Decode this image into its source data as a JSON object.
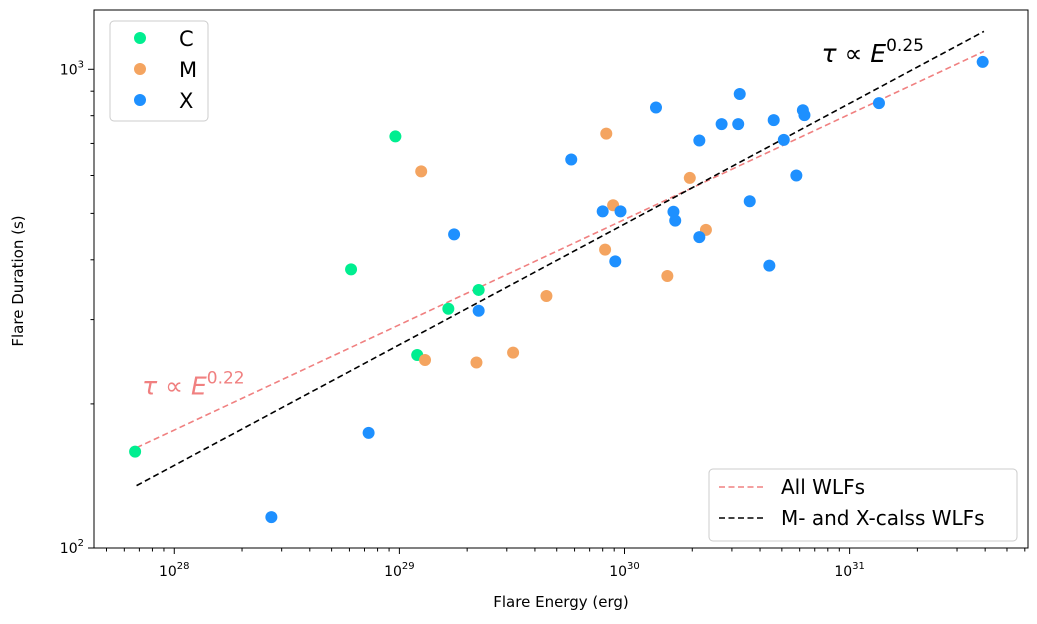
{
  "chart_data": {
    "type": "scatter",
    "xscale": "log",
    "yscale": "log",
    "xlabel": "Flare Energy (erg)",
    "ylabel": "Flare Duration (s)",
    "xlim": [
      4.4e+27,
      6.2e+31
    ],
    "ylim": [
      100,
      1330
    ],
    "x_ticks": [
      {
        "value": 1e+28,
        "base": "10",
        "exp": "28"
      },
      {
        "value": 1e+29,
        "base": "10",
        "exp": "29"
      },
      {
        "value": 1e+30,
        "base": "10",
        "exp": "30"
      },
      {
        "value": 1e+31,
        "base": "10",
        "exp": "31"
      }
    ],
    "y_ticks": [
      {
        "value": 100,
        "base": "10",
        "exp": "2"
      },
      {
        "value": 1000,
        "base": "10",
        "exp": "3"
      }
    ],
    "series": [
      {
        "name": "C",
        "color": "#00ee90",
        "points": [
          [
            6.7e+27,
            159
          ],
          [
            6.1e+28,
            382
          ],
          [
            9.6e+28,
            724
          ],
          [
            1.2e+29,
            253
          ],
          [
            1.65e+29,
            316
          ],
          [
            2.25e+29,
            346
          ]
        ]
      },
      {
        "name": "M",
        "color": "#f4a460",
        "points": [
          [
            1.25e+29,
            612
          ],
          [
            1.3e+29,
            247
          ],
          [
            2.2e+29,
            244
          ],
          [
            3.2e+29,
            256
          ],
          [
            4.5e+29,
            336
          ],
          [
            8.2e+29,
            420
          ],
          [
            8.3e+29,
            734
          ],
          [
            8.9e+29,
            520
          ],
          [
            1.55e+30,
            370
          ],
          [
            1.95e+30,
            593
          ],
          [
            2.3e+30,
            462
          ]
        ]
      },
      {
        "name": "X",
        "color": "#1e90ff",
        "points": [
          [
            2.7e+28,
            116
          ],
          [
            7.3e+28,
            174
          ],
          [
            1.75e+29,
            452
          ],
          [
            2.25e+29,
            313
          ],
          [
            5.8e+29,
            648
          ],
          [
            8e+29,
            505
          ],
          [
            9.1e+29,
            397
          ],
          [
            9.6e+29,
            505
          ],
          [
            1.38e+30,
            832
          ],
          [
            1.65e+30,
            504
          ],
          [
            1.68e+30,
            483
          ],
          [
            2.15e+30,
            710
          ],
          [
            2.15e+30,
            446
          ],
          [
            2.7e+30,
            768
          ],
          [
            3.2e+30,
            768
          ],
          [
            3.25e+30,
            888
          ],
          [
            3.6e+30,
            530
          ],
          [
            4.4e+30,
            389
          ],
          [
            4.6e+30,
            783
          ],
          [
            5.1e+30,
            712
          ],
          [
            5.8e+30,
            600
          ],
          [
            6.2e+30,
            821
          ],
          [
            6.3e+30,
            802
          ],
          [
            1.35e+31,
            850
          ],
          [
            3.9e+31,
            1036
          ]
        ]
      }
    ],
    "fits": [
      {
        "name": "All WLFs",
        "color": "#f08080",
        "style": "dashed",
        "x_range": [
          6.8e+27,
          3.95e+31
        ],
        "y_range": [
          162,
          1090
        ],
        "annotation": {
          "prefix": "τ ∝ E",
          "exponent": "0.22",
          "anchor": [
            7.2e+27,
            209
          ]
        }
      },
      {
        "name": "M- and X-calss WLFs",
        "color": "#000000",
        "style": "dashed",
        "x_range": [
          6.8e+27,
          3.95e+31
        ],
        "y_range": [
          135,
          1200
        ],
        "annotation": {
          "prefix": "τ ∝ E",
          "exponent": "0.25",
          "anchor": [
            7.5e+30,
            1035
          ]
        }
      }
    ],
    "legends": {
      "points": "top-left",
      "lines": "bottom-right"
    }
  }
}
